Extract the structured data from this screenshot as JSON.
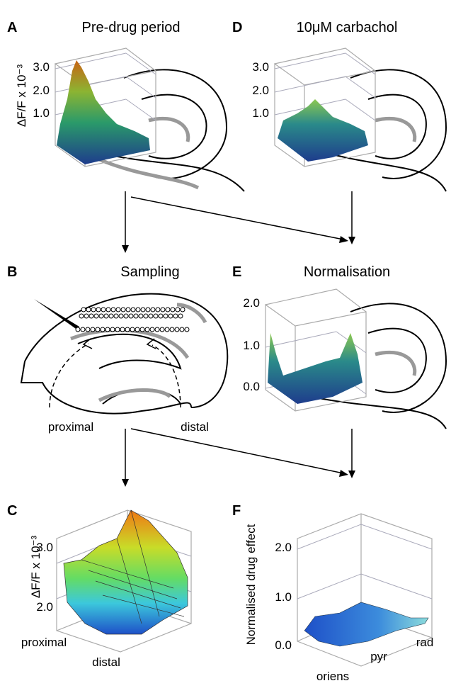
{
  "panels": [
    {
      "letter": "A",
      "title": "Pre-drug period",
      "y_label": "ΔF/F x 10⁻³",
      "ticks": [
        "3.0",
        "2.0",
        "1.0"
      ]
    },
    {
      "letter": "D",
      "title": "10μM carbachol",
      "ticks": [
        "3.0",
        "2.0",
        "1.0"
      ]
    },
    {
      "letter": "B",
      "title": "Sampling",
      "labels": [
        "proximal",
        "distal"
      ]
    },
    {
      "letter": "E",
      "title": "Normalisation",
      "ticks": [
        "2.0",
        "1.0",
        "0.0"
      ]
    },
    {
      "letter": "C",
      "y_label": "ΔF/F x 10⁻³",
      "ticks": [
        "3.0",
        "2.0"
      ],
      "x_labels": [
        "proximal",
        "distal"
      ]
    },
    {
      "letter": "F",
      "y_label": "Normalised drug effect",
      "ticks": [
        "2.0",
        "1.0",
        "0.0"
      ],
      "x_labels": [
        "oriens",
        "pyr",
        "rad"
      ]
    }
  ]
}
